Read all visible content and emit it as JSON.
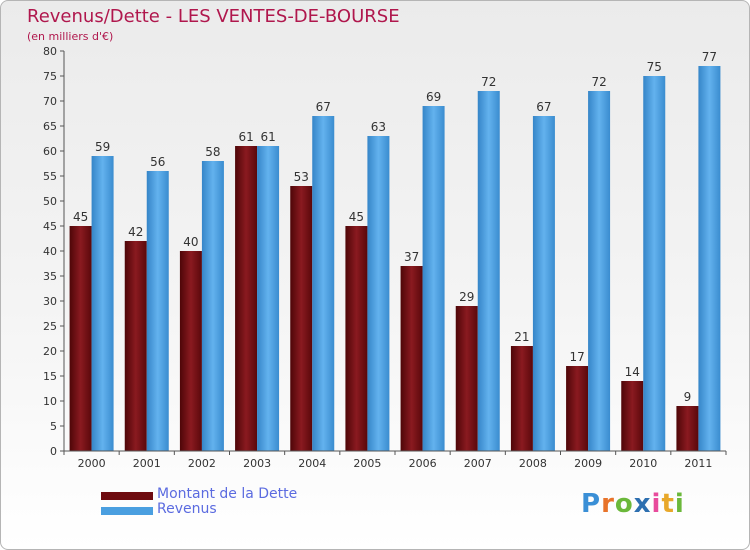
{
  "header": {
    "title": "Revenus/Dette - LES VENTES-DE-BOURSE",
    "subtitle": "(en milliers d'€)"
  },
  "colors": {
    "title": "#b0174d",
    "dette": "#6e0b0f",
    "revenus": "#4a9fe0",
    "legend_text": "#5b6be0"
  },
  "legend": [
    {
      "label": "Montant de la Dette",
      "color": "#6e0b0f"
    },
    {
      "label": "Revenus",
      "color": "#4a9fe0"
    }
  ],
  "logo": {
    "text": "Proxiti",
    "letters": [
      "P",
      "r",
      "o",
      "x",
      "i",
      "t",
      "i"
    ],
    "letter_colors": [
      "#3a8fd6",
      "#e8732a",
      "#6bb83a",
      "#2d6fb0",
      "#e84b9c",
      "#e8a82a",
      "#6bb83a"
    ]
  },
  "chart_data": {
    "type": "bar",
    "title": "Revenus/Dette - LES VENTES-DE-BOURSE",
    "subtitle": "(en milliers d'€)",
    "categories": [
      "2000",
      "2001",
      "2002",
      "2003",
      "2004",
      "2005",
      "2006",
      "2007",
      "2008",
      "2009",
      "2010",
      "2011"
    ],
    "series": [
      {
        "name": "Montant de la Dette",
        "values": [
          45,
          42,
          40,
          61,
          53,
          45,
          37,
          29,
          21,
          17,
          14,
          9
        ]
      },
      {
        "name": "Revenus",
        "values": [
          59,
          56,
          58,
          61,
          67,
          63,
          69,
          72,
          67,
          72,
          75,
          77
        ]
      }
    ],
    "ylim": [
      0,
      80
    ],
    "yticks": [
      0,
      5,
      10,
      15,
      20,
      25,
      30,
      35,
      40,
      45,
      50,
      55,
      60,
      65,
      70,
      75,
      80
    ],
    "grid": false,
    "legend_position": "bottom-left"
  }
}
